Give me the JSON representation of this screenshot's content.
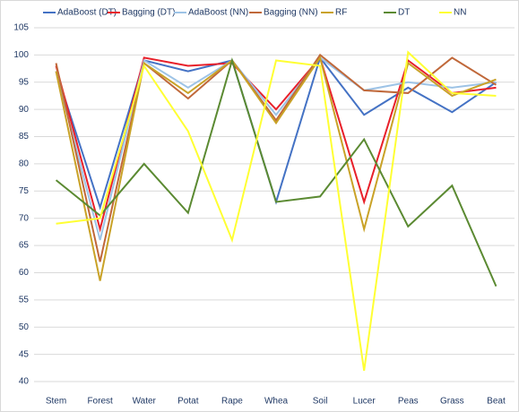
{
  "chart_data": {
    "type": "line",
    "categories": [
      "Stem",
      "Forest",
      "Water",
      "Potat",
      "Rape",
      "Whea",
      "Soil",
      "Lucer",
      "Peas",
      "Grass",
      "Beat"
    ],
    "series": [
      {
        "name": "AdaBoost (DT)",
        "color": "#4472c4",
        "values": [
          97,
          72,
          99,
          97,
          99,
          73,
          99.5,
          89,
          94,
          89.5,
          95
        ]
      },
      {
        "name": "Bagging (DT)",
        "color": "#e8202a",
        "values": [
          98,
          68,
          99.5,
          98,
          98.5,
          90,
          99.5,
          73,
          99,
          93,
          94
        ]
      },
      {
        "name": "AdaBoost (NN)",
        "color": "#9dc3e6",
        "values": [
          97,
          66,
          99,
          94,
          99,
          89,
          99.5,
          93.5,
          95,
          94,
          95
        ]
      },
      {
        "name": "Bagging (NN)",
        "color": "#c0683a",
        "values": [
          98.5,
          62,
          98.5,
          92,
          99,
          88,
          100,
          93.5,
          93,
          99.5,
          94.5
        ]
      },
      {
        "name": "RF",
        "color": "#c9a227",
        "values": [
          97,
          58.5,
          98.5,
          93,
          99,
          87.5,
          99.5,
          68,
          98.5,
          92.5,
          95.5
        ]
      },
      {
        "name": "DT",
        "color": "#5b8a32",
        "values": [
          77,
          70.5,
          80,
          71,
          99,
          73,
          74,
          84.5,
          68.5,
          76,
          57.5
        ]
      },
      {
        "name": "NN",
        "color": "#ffff33",
        "values": [
          69,
          70,
          98,
          86,
          66,
          99,
          98,
          42,
          100.5,
          93,
          92.5
        ]
      }
    ],
    "ylim": [
      40,
      105
    ],
    "yticks": [
      40,
      45,
      50,
      55,
      60,
      65,
      70,
      75,
      80,
      85,
      90,
      95,
      100,
      105
    ],
    "grid": true,
    "legend": "top"
  }
}
